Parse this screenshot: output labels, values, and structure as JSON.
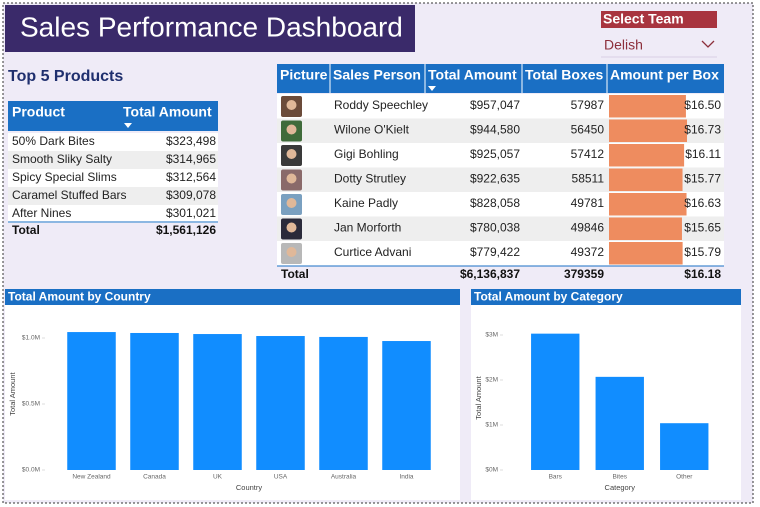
{
  "header": {
    "title": "Sales Performance Dashboard"
  },
  "slicer": {
    "label": "Select Team",
    "value": "Delish"
  },
  "top_products": {
    "title": "Top 5 Products",
    "columns": [
      "Product",
      "Total Amount"
    ],
    "rows": [
      [
        "50% Dark Bites",
        "$323,498"
      ],
      [
        "Smooth Sliky Salty",
        "$314,965"
      ],
      [
        "Spicy Special Slims",
        "$312,564"
      ],
      [
        "Caramel Stuffed Bars",
        "$309,078"
      ],
      [
        "After Nines",
        "$301,021"
      ]
    ],
    "total": [
      "Total",
      "$1,561,126"
    ]
  },
  "sales_table": {
    "columns": [
      "Picture",
      "Sales Person",
      "Total Amount",
      "Total Boxes",
      "Amount per Box"
    ],
    "rows": [
      {
        "name": "Roddy Speechley",
        "total_amount": "$957,047",
        "total_boxes": "57987",
        "amount_per_box": {
          "value": 16.5,
          "label": "$16.50"
        }
      },
      {
        "name": "Wilone O'Kielt",
        "total_amount": "$944,580",
        "total_boxes": "56450",
        "amount_per_box": {
          "value": 16.73,
          "label": "$16.73"
        }
      },
      {
        "name": "Gigi Bohling",
        "total_amount": "$925,057",
        "total_boxes": "57412",
        "amount_per_box": {
          "value": 16.11,
          "label": "$16.11"
        }
      },
      {
        "name": "Dotty Strutley",
        "total_amount": "$922,635",
        "total_boxes": "58511",
        "amount_per_box": {
          "value": 15.77,
          "label": "$15.77"
        }
      },
      {
        "name": "Kaine Padly",
        "total_amount": "$828,058",
        "total_boxes": "49781",
        "amount_per_box": {
          "value": 16.63,
          "label": "$16.63"
        }
      },
      {
        "name": "Jan Morforth",
        "total_amount": "$780,038",
        "total_boxes": "49846",
        "amount_per_box": {
          "value": 15.65,
          "label": "$15.65"
        }
      },
      {
        "name": "Curtice Advani",
        "total_amount": "$779,422",
        "total_boxes": "49372",
        "amount_per_box": {
          "value": 15.79,
          "label": "$15.79"
        }
      }
    ],
    "total": [
      "Total",
      "$6,136,837",
      "379359",
      "$16.18"
    ]
  },
  "chart_data": [
    {
      "type": "bar",
      "title": "Total Amount by Country",
      "x_label": "Country",
      "y_label": "Total Amount",
      "categories": [
        "New Zealand",
        "Canada",
        "UK",
        "USA",
        "Australia",
        "India"
      ],
      "values": [
        1045000,
        1038000,
        1030000,
        1015000,
        1008000,
        977000
      ],
      "color": "#118dff",
      "ylim": [
        0,
        1150000
      ],
      "yticks": [
        {
          "value": 0,
          "label": "$0.0M"
        },
        {
          "value": 500000,
          "label": "$0.5M"
        },
        {
          "value": 1000000,
          "label": "$1.0M"
        }
      ]
    },
    {
      "type": "bar",
      "title": "Total Amount by Category",
      "x_label": "Category",
      "y_label": "Total Amount",
      "categories": [
        "Bars",
        "Bites",
        "Other"
      ],
      "values": [
        3030000,
        2070000,
        1040000
      ],
      "color": "#118dff",
      "ylim": [
        0,
        3200000
      ],
      "yticks": [
        {
          "value": 0,
          "label": "$0M"
        },
        {
          "value": 1000000,
          "label": "$1M"
        },
        {
          "value": 2000000,
          "label": "$2M"
        },
        {
          "value": 3000000,
          "label": "$3M"
        }
      ]
    }
  ]
}
